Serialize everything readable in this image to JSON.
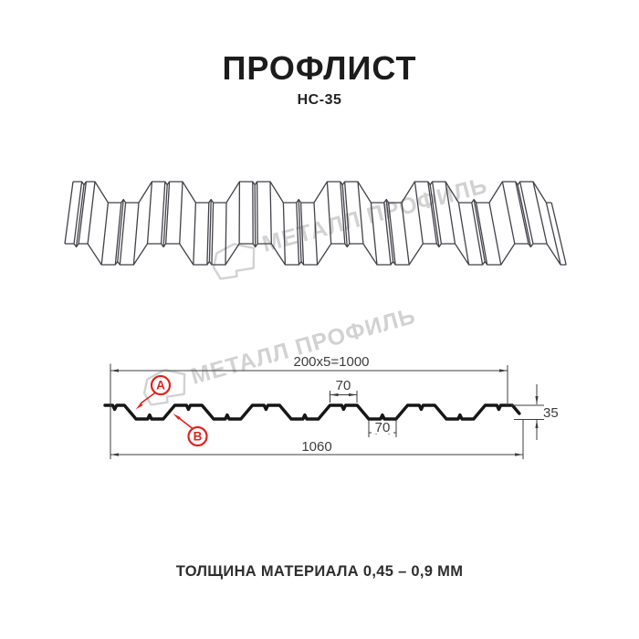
{
  "header": {
    "title": "ПРОФЛИСТ",
    "subtitle": "НС-35"
  },
  "watermark": {
    "text": "МЕТАЛЛ ПРОФИЛЬ"
  },
  "cross_section": {
    "dim_working_width": "200x5=1000",
    "dim_overall_width": "1060",
    "dim_top_flange_width": "70",
    "dim_bottom_flange_width": "70",
    "dim_profile_height": "35",
    "callout_a": "A",
    "callout_b": "B"
  },
  "footer": {
    "text": "ТОЛЩИНА МАТЕРИАЛА 0,45 – 0,9 ММ"
  },
  "colors": {
    "accent_red": "#e2231d",
    "profile_black": "#161616",
    "drawing_line": "#42424a",
    "dimension": "#3d3d3d",
    "watermark_gray": "#d2d2d2"
  }
}
